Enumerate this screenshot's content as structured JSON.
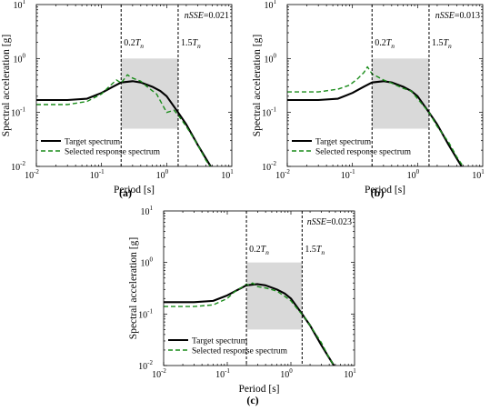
{
  "figure": {
    "panels": [
      {
        "caption": "(a)",
        "nsse_label": "nSSE",
        "nsse_value": "=0.021"
      },
      {
        "caption": "(b)",
        "nsse_label": "nSSE",
        "nsse_value": "=0.013"
      },
      {
        "caption": "(c)",
        "nsse_label": "nSSE",
        "nsse_value": "=0.023"
      }
    ],
    "colors": {
      "target": "#000000",
      "selected": "#1a8c1a",
      "shade": "#d9d9d9"
    }
  },
  "chart_data": [
    {
      "type": "line",
      "xscale": "log",
      "yscale": "log",
      "xlabel": "Period [s]",
      "ylabel": "Spectral acceleration [g]",
      "xlim": [
        0.01,
        10
      ],
      "ylim": [
        0.01,
        10
      ],
      "x_ticks": [
        "10",
        "10",
        "10",
        "10"
      ],
      "x_tick_exp": [
        "-2",
        "-1",
        "0",
        "1"
      ],
      "y_ticks": [
        "10",
        "10",
        "10",
        "10",
        "10"
      ],
      "y_tick_exp": [
        "-2",
        "-1",
        "0",
        "1"
      ],
      "vlines": [
        {
          "x": 0.2,
          "label_prefix": "0.2",
          "label_var": "T",
          "label_sub": "n"
        },
        {
          "x": 1.5,
          "label_prefix": "1.5",
          "label_var": "T",
          "label_sub": "n"
        }
      ],
      "shaded_region": {
        "x": [
          0.2,
          1.5
        ],
        "y": [
          0.05,
          1.0
        ]
      },
      "legend": {
        "position": "bottom-left",
        "entries": [
          "Target spectrum",
          "Selected response spectrum"
        ]
      },
      "series": [
        {
          "name": "Target spectrum",
          "style": "solid",
          "x": [
            0.01,
            0.03,
            0.06,
            0.1,
            0.15,
            0.2,
            0.3,
            0.4,
            0.6,
            0.8,
            1.0,
            1.5,
            2.0,
            3.0,
            4.0,
            5.0
          ],
          "y": [
            0.17,
            0.17,
            0.18,
            0.23,
            0.3,
            0.36,
            0.38,
            0.36,
            0.3,
            0.25,
            0.2,
            0.1,
            0.06,
            0.025,
            0.014,
            0.009
          ]
        },
        {
          "name": "Selected response spectrum",
          "style": "dashed",
          "x": [
            0.01,
            0.03,
            0.06,
            0.1,
            0.13,
            0.17,
            0.2,
            0.25,
            0.28,
            0.32,
            0.4,
            0.5,
            0.7,
            1.0,
            1.3,
            1.6,
            2.0,
            3.0,
            4.0,
            5.0
          ],
          "y": [
            0.14,
            0.14,
            0.16,
            0.22,
            0.3,
            0.4,
            0.35,
            0.5,
            0.45,
            0.42,
            0.38,
            0.3,
            0.22,
            0.1,
            0.11,
            0.08,
            0.055,
            0.025,
            0.013,
            0.009
          ]
        }
      ]
    },
    {
      "type": "line",
      "xscale": "log",
      "yscale": "log",
      "xlabel": "Period [s]",
      "ylabel": "Spectral acceleration [g]",
      "xlim": [
        0.01,
        10
      ],
      "ylim": [
        0.01,
        10
      ],
      "x_ticks": [
        "10",
        "10",
        "10",
        "10"
      ],
      "x_tick_exp": [
        "-2",
        "-1",
        "0",
        "1"
      ],
      "y_ticks": [
        "10",
        "10",
        "10",
        "10",
        "10"
      ],
      "y_tick_exp": [
        "-2",
        "-1",
        "0",
        "1"
      ],
      "vlines": [
        {
          "x": 0.2,
          "label_prefix": "0.2",
          "label_var": "T",
          "label_sub": "n"
        },
        {
          "x": 1.5,
          "label_prefix": "1.5",
          "label_var": "T",
          "label_sub": "n"
        }
      ],
      "shaded_region": {
        "x": [
          0.2,
          1.5
        ],
        "y": [
          0.05,
          1.0
        ]
      },
      "legend": {
        "position": "bottom-left",
        "entries": [
          "Target spectrum",
          "Selected response spectrum"
        ]
      },
      "series": [
        {
          "name": "Target spectrum",
          "style": "solid",
          "x": [
            0.01,
            0.03,
            0.06,
            0.1,
            0.15,
            0.2,
            0.3,
            0.4,
            0.6,
            0.8,
            1.0,
            1.5,
            2.0,
            3.0,
            4.0,
            5.0
          ],
          "y": [
            0.17,
            0.17,
            0.18,
            0.23,
            0.3,
            0.36,
            0.38,
            0.36,
            0.3,
            0.25,
            0.2,
            0.1,
            0.06,
            0.025,
            0.014,
            0.009
          ]
        },
        {
          "name": "Selected response spectrum",
          "style": "dashed",
          "x": [
            0.01,
            0.03,
            0.06,
            0.09,
            0.12,
            0.15,
            0.17,
            0.2,
            0.25,
            0.3,
            0.4,
            0.6,
            0.8,
            1.0,
            1.5,
            2.0,
            3.0,
            4.0,
            5.0
          ],
          "y": [
            0.24,
            0.24,
            0.27,
            0.32,
            0.42,
            0.55,
            0.7,
            0.52,
            0.45,
            0.4,
            0.35,
            0.28,
            0.25,
            0.18,
            0.1,
            0.055,
            0.028,
            0.015,
            0.01
          ]
        }
      ]
    },
    {
      "type": "line",
      "xscale": "log",
      "yscale": "log",
      "xlabel": "Period [s]",
      "ylabel": "Spectral acceleration [g]",
      "xlim": [
        0.01,
        10
      ],
      "ylim": [
        0.01,
        10
      ],
      "x_ticks": [
        "10",
        "10",
        "10",
        "10"
      ],
      "x_tick_exp": [
        "-2",
        "-1",
        "0",
        "1"
      ],
      "y_ticks": [
        "10",
        "10",
        "10",
        "10",
        "10"
      ],
      "y_tick_exp": [
        "-2",
        "-1",
        "0",
        "1"
      ],
      "vlines": [
        {
          "x": 0.2,
          "label_prefix": "0.2",
          "label_var": "T",
          "label_sub": "n"
        },
        {
          "x": 1.5,
          "label_prefix": "1.5",
          "label_var": "T",
          "label_sub": "n"
        }
      ],
      "shaded_region": {
        "x": [
          0.2,
          1.5
        ],
        "y": [
          0.05,
          1.0
        ]
      },
      "legend": {
        "position": "bottom-left",
        "entries": [
          "Target spectrum",
          "Selected response spectrum"
        ]
      },
      "series": [
        {
          "name": "Target spectrum",
          "style": "solid",
          "x": [
            0.01,
            0.03,
            0.06,
            0.1,
            0.15,
            0.2,
            0.3,
            0.4,
            0.6,
            0.8,
            1.0,
            1.5,
            2.0,
            3.0,
            4.0,
            5.0
          ],
          "y": [
            0.17,
            0.17,
            0.18,
            0.23,
            0.3,
            0.36,
            0.38,
            0.36,
            0.3,
            0.25,
            0.2,
            0.1,
            0.06,
            0.025,
            0.014,
            0.009
          ]
        },
        {
          "name": "Selected response spectrum",
          "style": "dashed",
          "x": [
            0.01,
            0.03,
            0.06,
            0.1,
            0.13,
            0.17,
            0.2,
            0.22,
            0.25,
            0.3,
            0.4,
            0.6,
            0.8,
            1.0,
            1.3,
            1.6,
            2.0,
            3.0,
            4.0,
            5.0
          ],
          "y": [
            0.14,
            0.14,
            0.15,
            0.2,
            0.27,
            0.33,
            0.38,
            0.36,
            0.4,
            0.34,
            0.32,
            0.28,
            0.22,
            0.18,
            0.12,
            0.09,
            0.06,
            0.028,
            0.014,
            0.009
          ]
        }
      ]
    }
  ]
}
